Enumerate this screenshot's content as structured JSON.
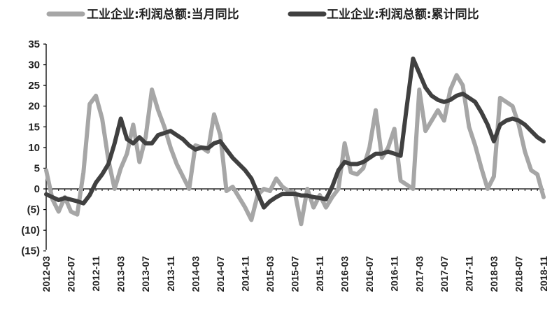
{
  "chart_data": {
    "type": "line",
    "title": "",
    "xlabel": "",
    "ylabel": "",
    "ylim": [
      -15,
      35
    ],
    "yticks": [
      35,
      30,
      25,
      20,
      15,
      10,
      5,
      0,
      -5,
      -10,
      -15
    ],
    "ytick_labels": [
      "35",
      "30",
      "25",
      "20",
      "15",
      "10",
      "5",
      "0",
      "(5)",
      "(10)",
      "(15)"
    ],
    "x_tick_labels": [
      "2012-03",
      "2012-07",
      "2012-11",
      "2013-03",
      "2013-07",
      "2013-11",
      "2014-03",
      "2014-07",
      "2014-11",
      "2015-03",
      "2015-07",
      "2015-11",
      "2016-03",
      "2016-07",
      "2016-11",
      "2017-03",
      "2017-07",
      "2017-11",
      "2018-03",
      "2018-07",
      "2018-11"
    ],
    "legend_position": "top",
    "grid": false,
    "series": [
      {
        "name": "工业企业:利润总额:当月同比",
        "color": "#a6a6a6",
        "values": [
          4.5,
          -2.5,
          -5.5,
          -2,
          -5.5,
          -6.2,
          4,
          20.5,
          22.5,
          17,
          7,
          0,
          5,
          8.5,
          15.5,
          6.5,
          12.5,
          24,
          19,
          15,
          10,
          6,
          3,
          0,
          10.5,
          10,
          9,
          18,
          13,
          -0.5,
          0.5,
          -2,
          -4.5,
          -7.5,
          -1.5,
          0,
          -0.5,
          2.5,
          0.5,
          -0.5,
          -1,
          -8.5,
          0,
          -4.5,
          -1.5,
          -4.5,
          -2,
          0,
          11,
          4,
          3.5,
          5,
          10,
          19,
          7.5,
          10,
          14.5,
          2,
          1,
          0,
          24,
          14,
          16.5,
          19,
          16.5,
          24,
          27.5,
          25,
          15,
          10.5,
          5,
          0,
          3,
          22,
          21,
          20,
          15.5,
          9,
          4.5,
          3.5,
          -2
        ]
      },
      {
        "name": "工业企业:利润总额:累计同比",
        "color": "#404040",
        "values": [
          -1.3,
          -2,
          -2.7,
          -2.2,
          -2.6,
          -3,
          -3.5,
          -1.5,
          1.5,
          3.5,
          6,
          11,
          17,
          12,
          11,
          12.5,
          11,
          11,
          13,
          13.5,
          14,
          13,
          12,
          10.5,
          9.5,
          10,
          9.8,
          11,
          11.5,
          9.5,
          7.5,
          6,
          4.5,
          2.5,
          -1,
          -4.5,
          -3,
          -2,
          -1.2,
          -1.2,
          -1.2,
          -1.6,
          -1.6,
          -2,
          -2.2,
          -2.5,
          0.5,
          4.5,
          6.5,
          6,
          6,
          6.5,
          7.5,
          8.5,
          8.5,
          9,
          8.5,
          8,
          20,
          31.5,
          28,
          24.5,
          22.5,
          21.5,
          21,
          21.5,
          22.5,
          23,
          22,
          21,
          18.5,
          15.5,
          11.5,
          15.5,
          16.5,
          17,
          16.5,
          15.5,
          14,
          12.5,
          11.5
        ]
      }
    ]
  }
}
